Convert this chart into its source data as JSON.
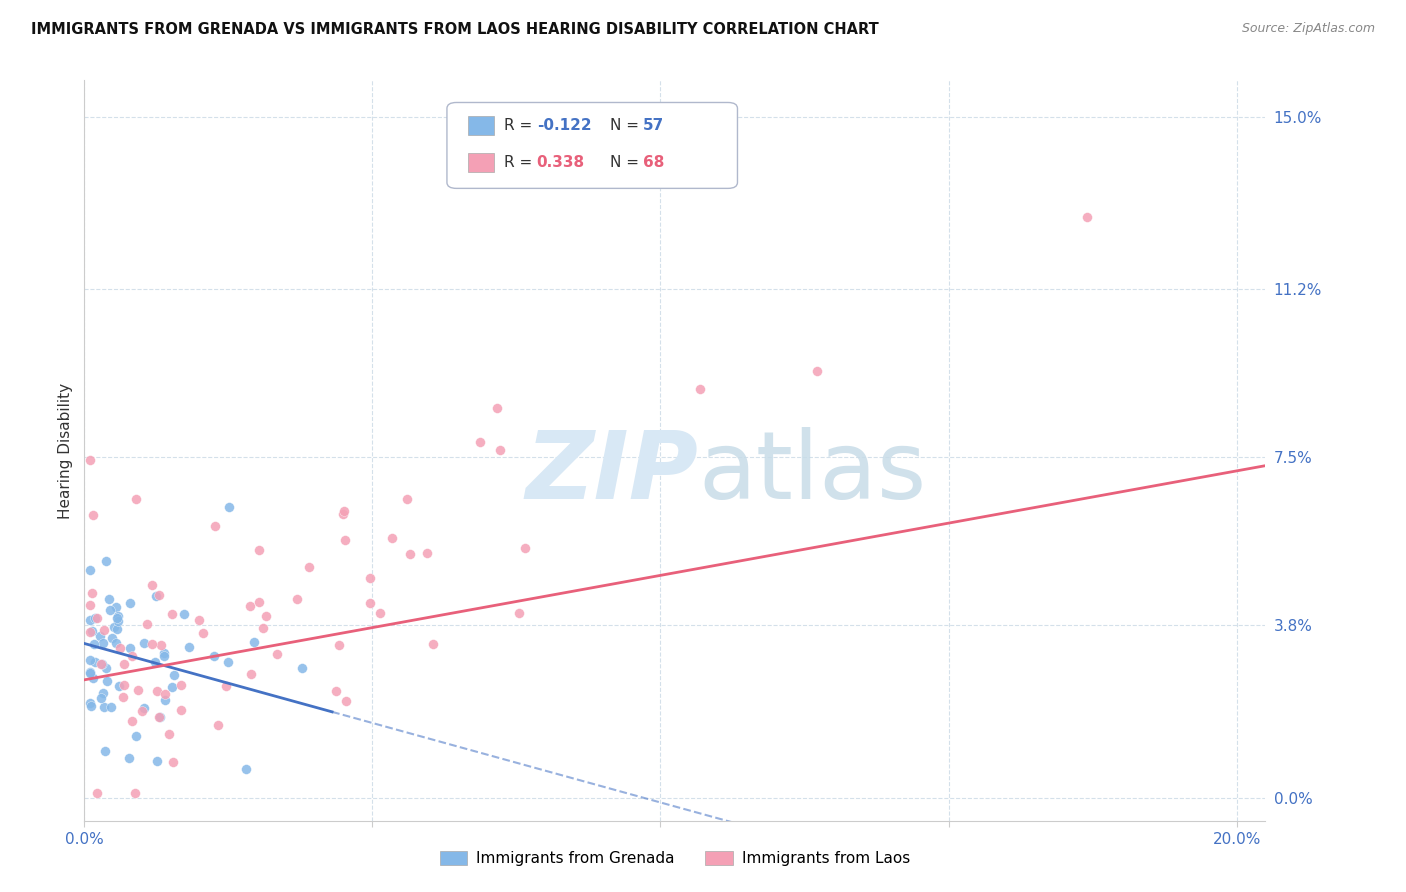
{
  "title": "IMMIGRANTS FROM GRENADA VS IMMIGRANTS FROM LAOS HEARING DISABILITY CORRELATION CHART",
  "source": "Source: ZipAtlas.com",
  "ylabel": "Hearing Disability",
  "ytick_labels": [
    "15.0%",
    "11.2%",
    "7.5%",
    "3.8%",
    "0.0%"
  ],
  "ytick_vals": [
    0.15,
    0.112,
    0.075,
    0.038,
    0.0
  ],
  "xtick_labels": [
    "0.0%",
    "",
    "",
    "",
    "20.0%"
  ],
  "xtick_vals": [
    0.0,
    0.05,
    0.1,
    0.15,
    0.2
  ],
  "xlim": [
    0.0,
    0.205
  ],
  "ylim": [
    -0.005,
    0.158
  ],
  "grenada_R": -0.122,
  "grenada_N": 57,
  "laos_R": 0.338,
  "laos_N": 68,
  "color_grenada": "#85b8e8",
  "color_laos": "#f4a0b5",
  "color_grenada_line": "#4472c4",
  "color_laos_line": "#e8607a",
  "color_axis_labels": "#4472c4",
  "watermark_color": "#d8e8f5",
  "legend_R_grenada": "-0.122",
  "legend_N_grenada": "57",
  "legend_R_laos": "0.338",
  "legend_N_laos": "68",
  "legend_label_grenada": "Immigrants from Grenada",
  "legend_label_laos": "Immigrants from Laos",
  "grid_color": "#d0dde8",
  "spine_color": "#cccccc"
}
